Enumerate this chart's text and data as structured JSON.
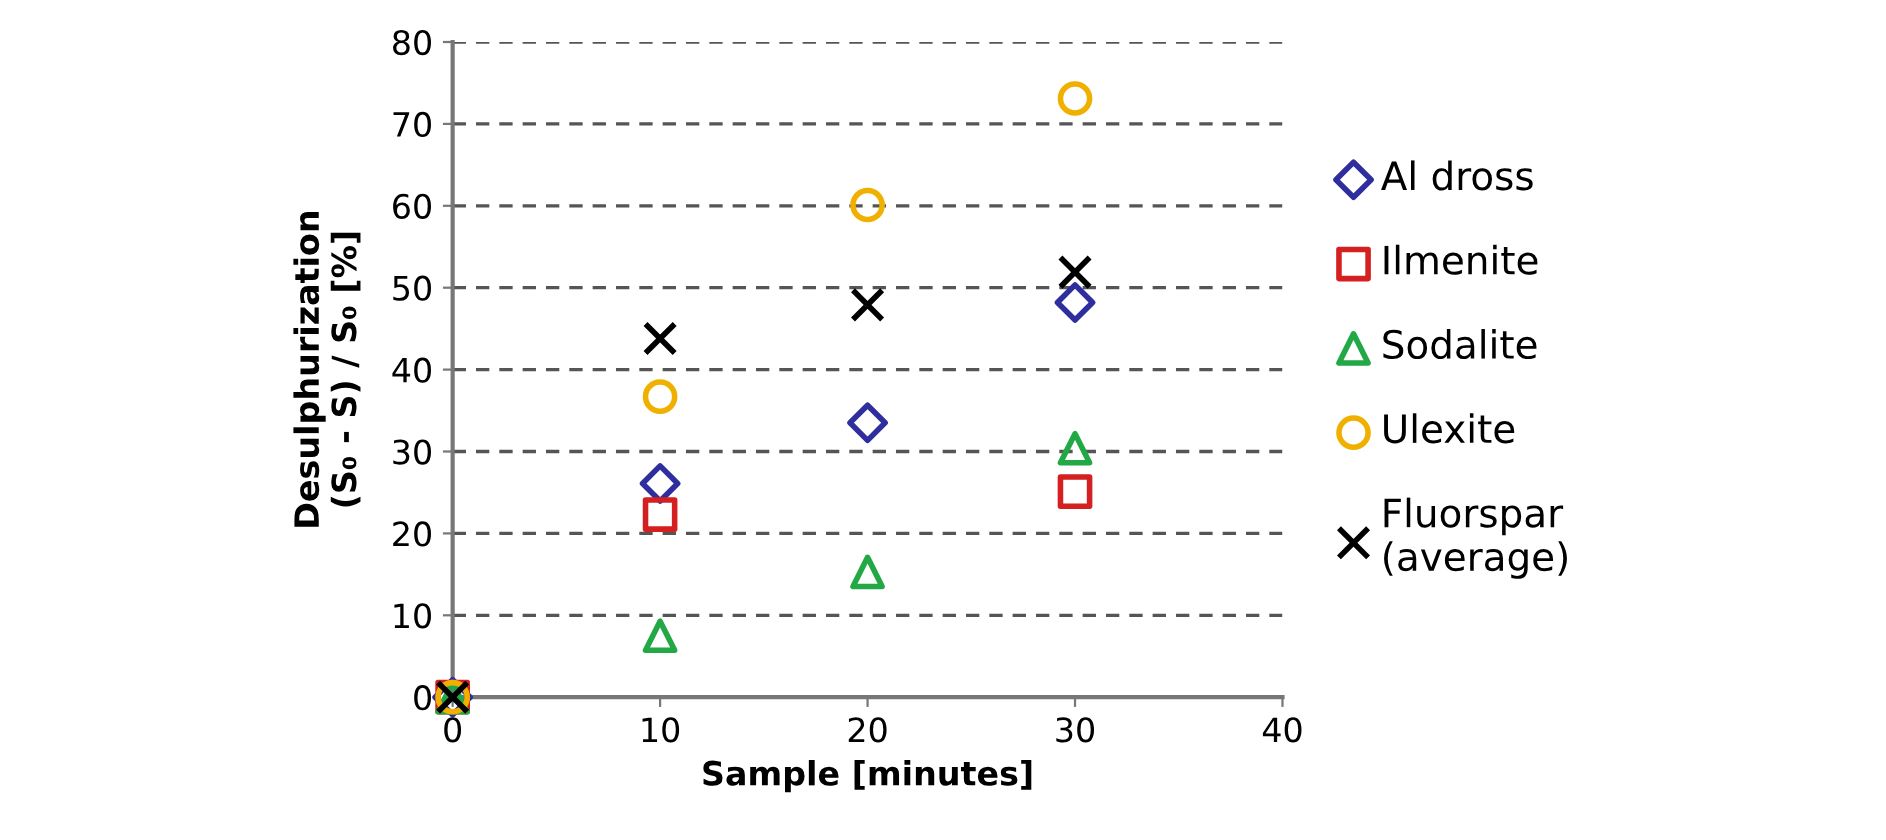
{
  "chart_data": {
    "type": "scatter",
    "xlabel": "Sample [minutes]",
    "ylabel": "Desulphurization\n(S₀ - S) / S₀ [%]",
    "x": [
      0,
      10,
      20,
      30
    ],
    "series": [
      {
        "name": "Al dross",
        "color": "#2e2e9e",
        "marker": "diamond",
        "values": [
          0,
          26.1,
          33.5,
          48.2
        ]
      },
      {
        "name": "Ilmenite",
        "color": "#d42020",
        "marker": "square",
        "x": [
          0,
          10,
          30
        ],
        "values": [
          0,
          22.3,
          25.1
        ]
      },
      {
        "name": "Sodalite",
        "color": "#22a845",
        "marker": "triangle",
        "values": [
          0,
          7.5,
          15.3,
          30.4
        ]
      },
      {
        "name": "Ulexite",
        "color": "#f0b000",
        "marker": "circle",
        "values": [
          0,
          36.7,
          60.1,
          73.1
        ]
      },
      {
        "name": "Fluorspar\n(average)",
        "color": "#000000",
        "marker": "cross",
        "values": [
          0,
          43.8,
          47.9,
          51.9
        ]
      }
    ],
    "xlim": [
      0,
      40
    ],
    "xticks": [
      0,
      10,
      20,
      30,
      40
    ],
    "ylim": [
      0,
      80
    ],
    "yticks": [
      0,
      10,
      20,
      30,
      40,
      50,
      60,
      70,
      80
    ],
    "grid": "y",
    "legend": "right"
  }
}
